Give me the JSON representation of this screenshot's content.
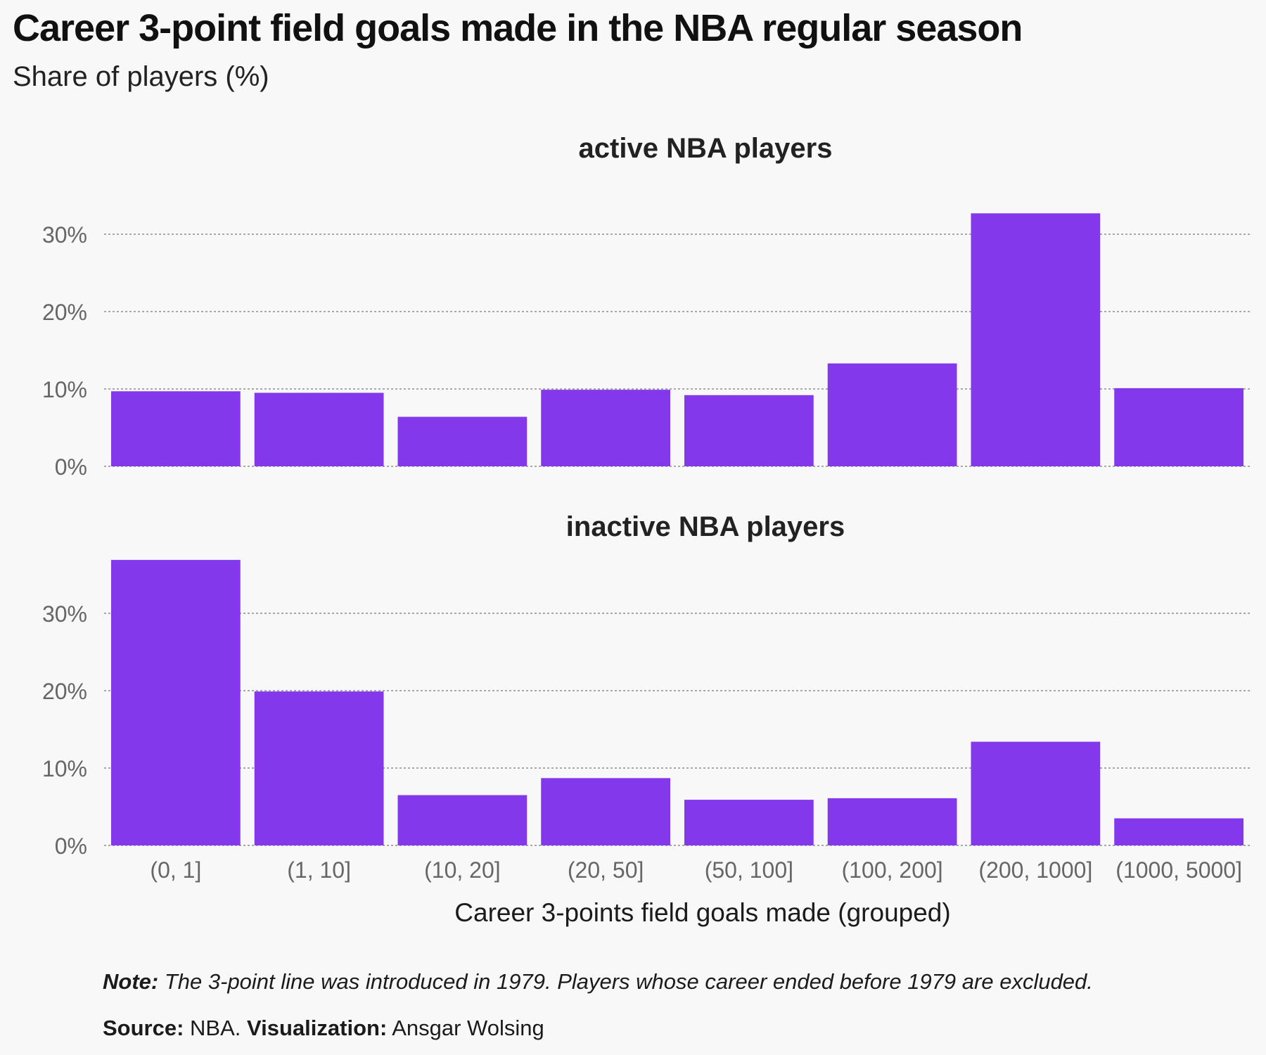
{
  "header": {
    "title": "Career 3-point field goals made in the NBA regular season",
    "subtitle": "Share of players (%)"
  },
  "footer": {
    "note_label": "Note:",
    "note_text": "The 3-point line was introduced in 1979. Players whose career ended before 1979 are excluded.",
    "source_label": "Source:",
    "source_text": "NBA.",
    "viz_label": "Visualization:",
    "viz_text": "Ansgar Wolsing"
  },
  "colors": {
    "bar": "#8338ec",
    "grid": "#777777",
    "axis_text": "#666666",
    "panel_title": "#222222"
  },
  "chart_data": {
    "type": "bar",
    "xlabel": "Career 3-points field goals made (grouped)",
    "ylabel": "",
    "ylim": [
      0,
      37.5
    ],
    "yticks": [
      0,
      10,
      20,
      30
    ],
    "ytick_labels": [
      "0%",
      "10%",
      "20%",
      "30%"
    ],
    "grid": true,
    "categories": [
      "(0, 1]",
      "(1, 10]",
      "(10, 20]",
      "(20, 50]",
      "(50, 100]",
      "(100, 200]",
      "(200, 1000]",
      "(1000, 5000]"
    ],
    "panels": [
      {
        "title": "active NBA players",
        "values": [
          9.7,
          9.5,
          6.4,
          9.9,
          9.2,
          13.3,
          32.7,
          10.1
        ]
      },
      {
        "title": "inactive NBA players",
        "values": [
          36.9,
          19.9,
          6.5,
          8.7,
          5.9,
          6.1,
          13.4,
          3.5
        ]
      }
    ]
  }
}
